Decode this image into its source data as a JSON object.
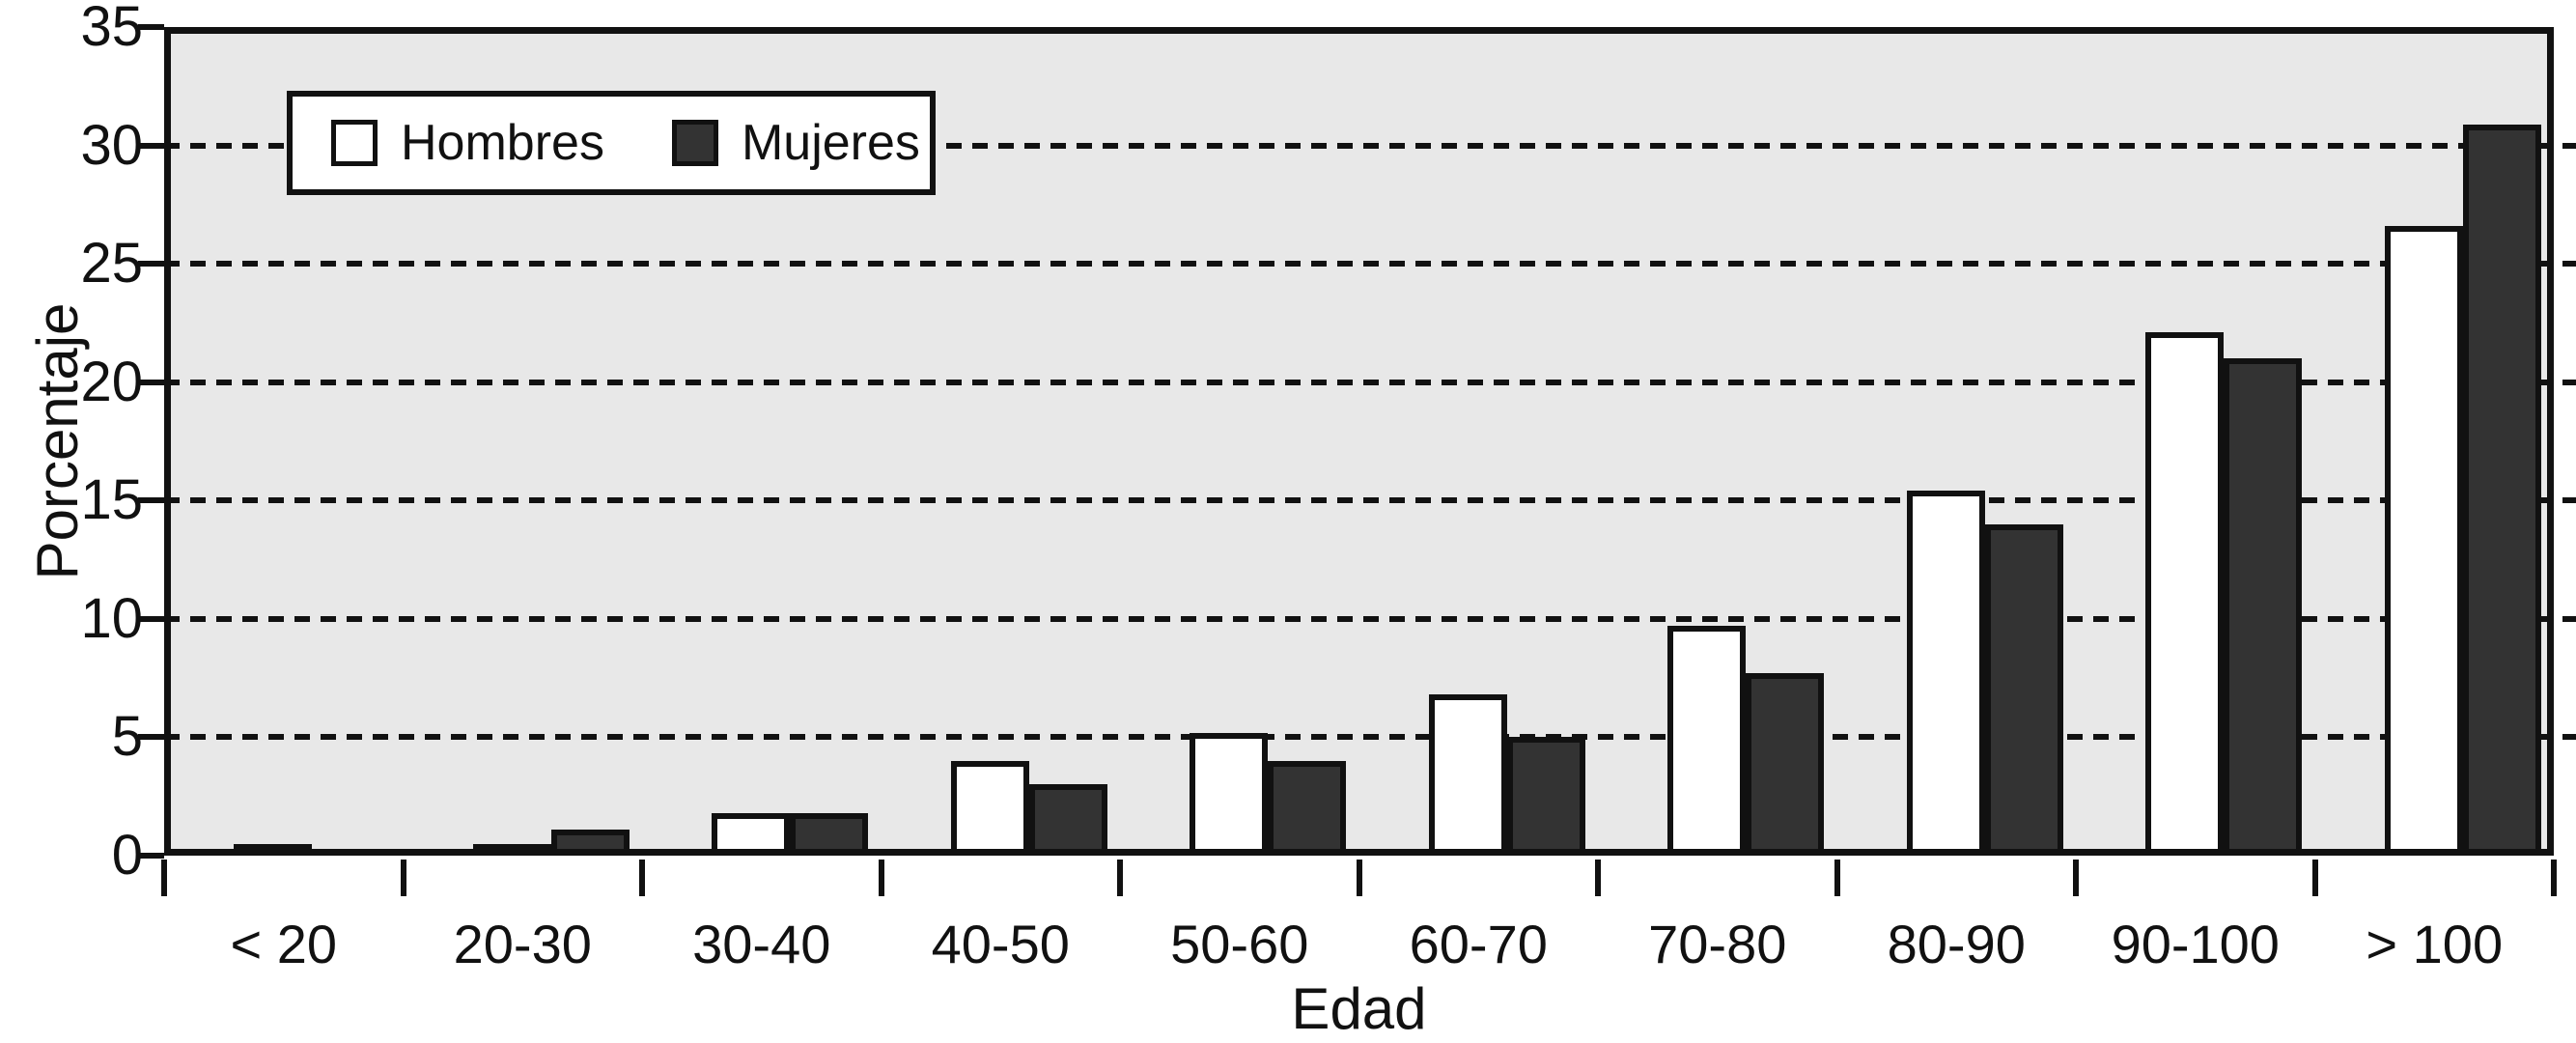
{
  "chart_data": {
    "type": "bar",
    "title": "",
    "xlabel": "Edad",
    "ylabel": "Porcentaje",
    "categories": [
      "< 20",
      "20-30",
      "30-40",
      "40-50",
      "50-60",
      "60-70",
      "70-80",
      "80-90",
      "90-100",
      "> 100"
    ],
    "series": [
      {
        "name": "Hombres",
        "color": "#ffffff",
        "values": [
          0.5,
          0.5,
          1.8,
          4.0,
          5.2,
          6.8,
          9.7,
          15.4,
          22.1,
          26.6
        ]
      },
      {
        "name": "Mujeres",
        "color": "#333333",
        "values": [
          0.3,
          1.1,
          1.8,
          3.0,
          4.0,
          5.0,
          7.7,
          14.0,
          21.0,
          30.9
        ]
      }
    ],
    "ylim": [
      0,
      35
    ],
    "ytick_step": 5,
    "yticks": [
      "0",
      "5",
      "10",
      "15",
      "20",
      "25",
      "30",
      "35"
    ],
    "grid": "dashed horizontal at every 5",
    "legend_position": "top-left inside plot",
    "colors": {
      "plot_background": "#e8e8e8",
      "axis_and_text": "#111111",
      "bar_outline": "#111111"
    }
  }
}
